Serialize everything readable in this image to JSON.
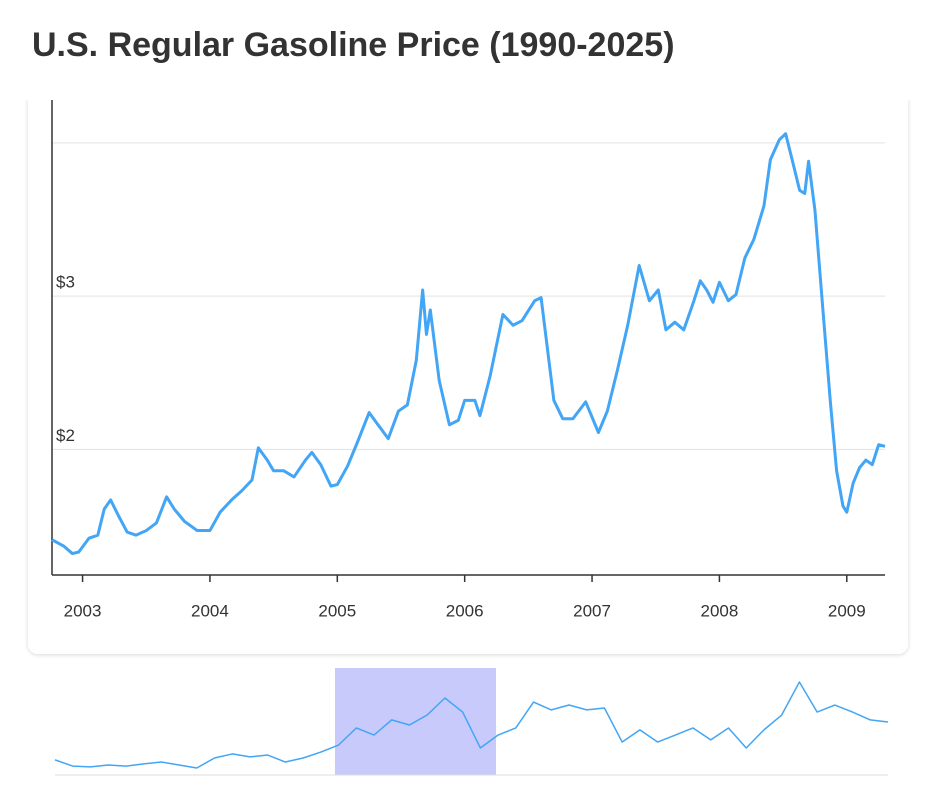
{
  "chart_data": [
    {
      "type": "line",
      "title": "U.S. Regular Gasoline Price (1990-2025)",
      "x": [
        2002.76,
        2002.85,
        2002.92,
        2002.97,
        2003.05,
        2003.12,
        2003.17,
        2003.22,
        2003.28,
        2003.35,
        2003.42,
        2003.5,
        2003.58,
        2003.66,
        2003.72,
        2003.8,
        2003.9,
        2004.0,
        2004.08,
        2004.17,
        2004.25,
        2004.33,
        2004.38,
        2004.45,
        2004.5,
        2004.58,
        2004.66,
        2004.75,
        2004.8,
        2004.87,
        2004.95,
        2005.0,
        2005.08,
        2005.15,
        2005.25,
        2005.32,
        2005.4,
        2005.48,
        2005.55,
        2005.62,
        2005.67,
        2005.7,
        2005.73,
        2005.8,
        2005.88,
        2005.95,
        2006.0,
        2006.08,
        2006.12,
        2006.2,
        2006.3,
        2006.38,
        2006.45,
        2006.55,
        2006.6,
        2006.7,
        2006.77,
        2006.85,
        2006.95,
        2007.05,
        2007.12,
        2007.2,
        2007.28,
        2007.37,
        2007.45,
        2007.52,
        2007.58,
        2007.65,
        2007.72,
        2007.8,
        2007.85,
        2007.9,
        2007.95,
        2008.0,
        2008.07,
        2008.13,
        2008.2,
        2008.27,
        2008.35,
        2008.4,
        2008.47,
        2008.52,
        2008.58,
        2008.63,
        2008.67,
        2008.7,
        2008.75,
        2008.8,
        2008.87,
        2008.92,
        2008.97,
        2009.0,
        2009.05,
        2009.1,
        2009.15,
        2009.2,
        2009.25,
        2009.3
      ],
      "values": [
        1.41,
        1.37,
        1.32,
        1.33,
        1.42,
        1.44,
        1.61,
        1.67,
        1.57,
        1.46,
        1.44,
        1.47,
        1.52,
        1.69,
        1.61,
        1.53,
        1.47,
        1.47,
        1.59,
        1.67,
        1.73,
        1.8,
        2.01,
        1.93,
        1.86,
        1.86,
        1.82,
        1.93,
        1.98,
        1.9,
        1.76,
        1.77,
        1.89,
        2.03,
        2.24,
        2.16,
        2.07,
        2.25,
        2.29,
        2.58,
        3.04,
        2.75,
        2.91,
        2.45,
        2.16,
        2.19,
        2.32,
        2.32,
        2.22,
        2.48,
        2.88,
        2.81,
        2.84,
        2.97,
        2.99,
        2.32,
        2.2,
        2.2,
        2.31,
        2.11,
        2.25,
        2.52,
        2.81,
        3.2,
        2.97,
        3.04,
        2.78,
        2.83,
        2.78,
        2.97,
        3.1,
        3.04,
        2.96,
        3.09,
        2.97,
        3.01,
        3.25,
        3.37,
        3.59,
        3.89,
        4.02,
        4.06,
        3.86,
        3.69,
        3.67,
        3.88,
        3.56,
        3.04,
        2.32,
        1.86,
        1.63,
        1.59,
        1.78,
        1.88,
        1.93,
        1.9,
        2.03,
        2.02
      ],
      "color": "#42a5f5",
      "xlim": [
        2002.76,
        2009.3
      ],
      "xticks": [
        2003,
        2004,
        2005,
        2006,
        2007,
        2008,
        2009
      ],
      "ylim": [
        1.18,
        4.28
      ],
      "yticks": [
        {
          "value": 2,
          "label": "$2"
        },
        {
          "value": 3,
          "label": "$3"
        },
        {
          "value": 4,
          "label": null
        }
      ],
      "grid": true
    },
    {
      "type": "line",
      "values": [
        1.19,
        0.96,
        0.93,
        1.0,
        0.96,
        1.04,
        1.11,
        1.0,
        0.89,
        1.26,
        1.41,
        1.3,
        1.37,
        1.11,
        1.26,
        1.48,
        1.74,
        2.37,
        2.11,
        2.67,
        2.48,
        2.85,
        3.48,
        2.96,
        1.63,
        2.11,
        2.37,
        3.33,
        3.04,
        3.22,
        3.04,
        3.11,
        1.85,
        2.3,
        1.85,
        2.11,
        2.37,
        1.93,
        2.37,
        1.63,
        2.3,
        2.85,
        4.07,
        2.96,
        3.22,
        2.96,
        2.67,
        2.59
      ],
      "color": "#42a5f5",
      "ylim": [
        0.63,
        4.59
      ]
    }
  ]
}
